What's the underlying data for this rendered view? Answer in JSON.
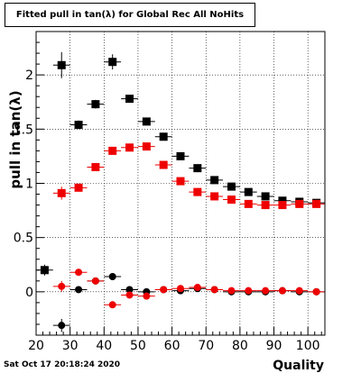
{
  "chart_data": {
    "type": "scatter",
    "title": "Fitted pull in tan(λ) for Global Rec All NoHits",
    "xlabel": "Quality",
    "ylabel": "pull in tan(λ)",
    "xlim": [
      20,
      105
    ],
    "ylim": [
      -0.4,
      2.4
    ],
    "xticks": [
      20,
      30,
      40,
      50,
      60,
      70,
      80,
      90,
      100
    ],
    "yticks": [
      0,
      0.5,
      1,
      1.5,
      2
    ],
    "ytick_labels": [
      "0",
      "0.5",
      "1",
      "1.5",
      "2"
    ],
    "grid": true,
    "series": [
      {
        "marker": "square",
        "color": "#000000",
        "points": [
          {
            "x": 22.5,
            "y": 0.2,
            "err": 0.05
          },
          {
            "x": 27.5,
            "y": 2.09,
            "err": 0.12
          },
          {
            "x": 32.5,
            "y": 1.54,
            "err": 0.04
          },
          {
            "x": 37.5,
            "y": 1.73,
            "err": 0.04
          },
          {
            "x": 42.5,
            "y": 2.12,
            "err": 0.07
          },
          {
            "x": 47.5,
            "y": 1.78,
            "err": 0.03
          },
          {
            "x": 52.5,
            "y": 1.57,
            "err": 0.03
          },
          {
            "x": 57.5,
            "y": 1.43,
            "err": 0.03
          },
          {
            "x": 62.5,
            "y": 1.25,
            "err": 0.03
          },
          {
            "x": 67.5,
            "y": 1.14,
            "err": 0.02
          },
          {
            "x": 72.5,
            "y": 1.03,
            "err": 0.02
          },
          {
            "x": 77.5,
            "y": 0.97,
            "err": 0.02
          },
          {
            "x": 82.5,
            "y": 0.92,
            "err": 0.02
          },
          {
            "x": 87.5,
            "y": 0.88,
            "err": 0.02
          },
          {
            "x": 92.5,
            "y": 0.84,
            "err": 0.02
          },
          {
            "x": 97.5,
            "y": 0.83,
            "err": 0.02
          },
          {
            "x": 102.5,
            "y": 0.82,
            "err": 0.02
          }
        ]
      },
      {
        "marker": "square",
        "color": "#ee0000",
        "points": [
          {
            "x": 27.5,
            "y": 0.91,
            "err": 0.06
          },
          {
            "x": 32.5,
            "y": 0.96,
            "err": 0.03
          },
          {
            "x": 37.5,
            "y": 1.15,
            "err": 0.03
          },
          {
            "x": 42.5,
            "y": 1.3,
            "err": 0.03
          },
          {
            "x": 47.5,
            "y": 1.33,
            "err": 0.03
          },
          {
            "x": 52.5,
            "y": 1.34,
            "err": 0.02
          },
          {
            "x": 57.5,
            "y": 1.17,
            "err": 0.02
          },
          {
            "x": 62.5,
            "y": 1.02,
            "err": 0.02
          },
          {
            "x": 67.5,
            "y": 0.92,
            "err": 0.02
          },
          {
            "x": 72.5,
            "y": 0.88,
            "err": 0.02
          },
          {
            "x": 77.5,
            "y": 0.85,
            "err": 0.02
          },
          {
            "x": 82.5,
            "y": 0.81,
            "err": 0.02
          },
          {
            "x": 87.5,
            "y": 0.8,
            "err": 0.02
          },
          {
            "x": 92.5,
            "y": 0.8,
            "err": 0.02
          },
          {
            "x": 97.5,
            "y": 0.81,
            "err": 0.02
          },
          {
            "x": 102.5,
            "y": 0.81,
            "err": 0.02
          }
        ]
      },
      {
        "marker": "circle",
        "color": "#000000",
        "points": [
          {
            "x": 27.5,
            "y": -0.31,
            "err": 0.06
          },
          {
            "x": 32.5,
            "y": 0.02,
            "err": 0.03
          },
          {
            "x": 37.5,
            "y": 0.1,
            "err": 0.02
          },
          {
            "x": 42.5,
            "y": 0.14,
            "err": 0.02
          },
          {
            "x": 47.5,
            "y": 0.02,
            "err": 0.02
          },
          {
            "x": 52.5,
            "y": 0.0,
            "err": 0.02
          },
          {
            "x": 57.5,
            "y": 0.02,
            "err": 0.02
          },
          {
            "x": 62.5,
            "y": 0.01,
            "err": 0.02
          },
          {
            "x": 67.5,
            "y": 0.03,
            "err": 0.01
          },
          {
            "x": 72.5,
            "y": 0.02,
            "err": 0.01
          },
          {
            "x": 77.5,
            "y": 0.0,
            "err": 0.01
          },
          {
            "x": 82.5,
            "y": 0.0,
            "err": 0.01
          },
          {
            "x": 87.5,
            "y": 0.0,
            "err": 0.01
          },
          {
            "x": 92.5,
            "y": 0.01,
            "err": 0.01
          },
          {
            "x": 97.5,
            "y": 0.0,
            "err": 0.01
          },
          {
            "x": 102.5,
            "y": 0.0,
            "err": 0.01
          }
        ]
      },
      {
        "marker": "circle",
        "color": "#ee0000",
        "points": [
          {
            "x": 27.5,
            "y": 0.05,
            "err": 0.05
          },
          {
            "x": 32.5,
            "y": 0.18,
            "err": 0.03
          },
          {
            "x": 37.5,
            "y": 0.1,
            "err": 0.02
          },
          {
            "x": 42.5,
            "y": -0.12,
            "err": 0.02
          },
          {
            "x": 47.5,
            "y": -0.03,
            "err": 0.02
          },
          {
            "x": 52.5,
            "y": -0.04,
            "err": 0.02
          },
          {
            "x": 57.5,
            "y": 0.02,
            "err": 0.02
          },
          {
            "x": 62.5,
            "y": 0.03,
            "err": 0.02
          },
          {
            "x": 67.5,
            "y": 0.04,
            "err": 0.01
          },
          {
            "x": 72.5,
            "y": 0.02,
            "err": 0.01
          },
          {
            "x": 77.5,
            "y": 0.01,
            "err": 0.01
          },
          {
            "x": 82.5,
            "y": 0.01,
            "err": 0.01
          },
          {
            "x": 87.5,
            "y": 0.01,
            "err": 0.01
          },
          {
            "x": 92.5,
            "y": 0.01,
            "err": 0.01
          },
          {
            "x": 97.5,
            "y": 0.01,
            "err": 0.01
          },
          {
            "x": 102.5,
            "y": 0.0,
            "err": 0.01
          }
        ]
      }
    ]
  },
  "footer": {
    "date": "Sat Oct 17 20:18:24 2020"
  }
}
